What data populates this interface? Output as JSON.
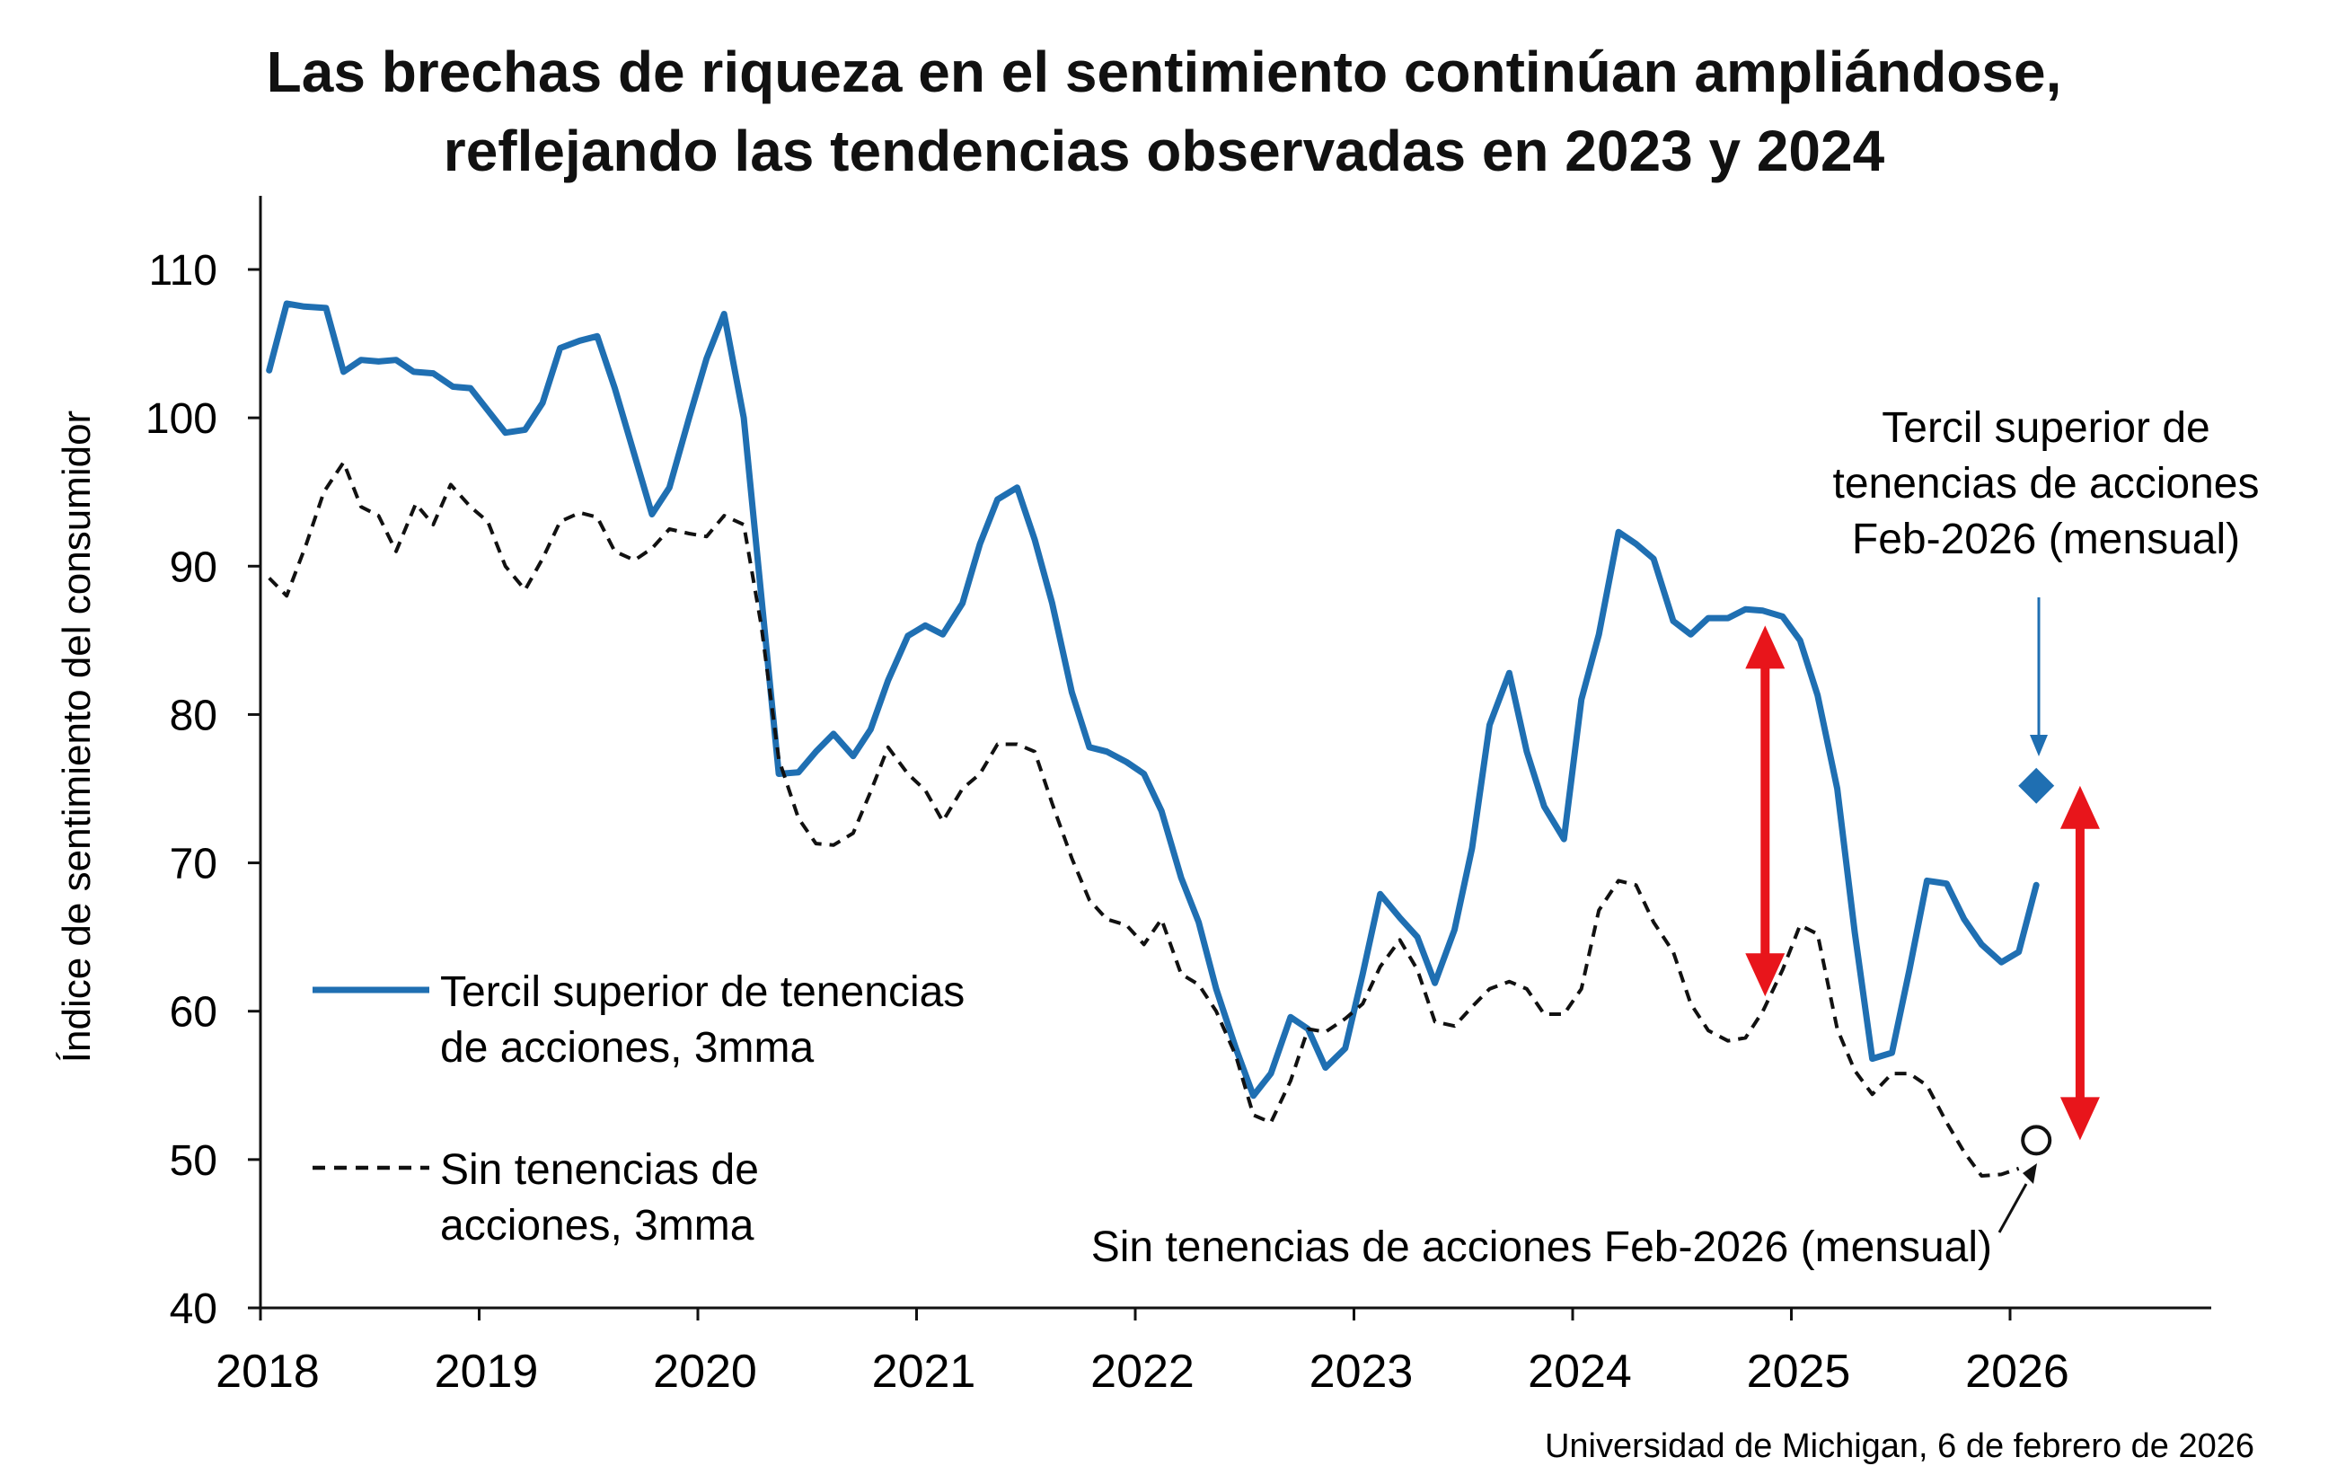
{
  "chart_data": {
    "type": "line",
    "title_line1": "Las brechas de riqueza en el sentimiento continúan ampliándose,",
    "title_line2": "reflejando las tendencias observadas en 2023 y 2024",
    "ylabel": "Índice de sentimiento del consumidor",
    "xlabel": "",
    "ylim": [
      40,
      115
    ],
    "yticks": [
      "40",
      "50",
      "60",
      "70",
      "80",
      "90",
      "100",
      "110"
    ],
    "xlim": [
      2018,
      2026.9
    ],
    "xticks": [
      "2018",
      "2019",
      "2020",
      "2021",
      "2022",
      "2023",
      "2024",
      "2025",
      "2026"
    ],
    "series": [
      {
        "name": "Tercil superior de tenencias de acciones, 3mma",
        "legend_line1": "Tercil superior de tenencias",
        "legend_line2": "de acciones, 3mma",
        "color": "#1f6fb2",
        "style": "solid",
        "points": [
          [
            2018.04,
            103.2
          ],
          [
            2018.12,
            107.7
          ],
          [
            2018.2,
            107.5
          ],
          [
            2018.3,
            107.4
          ],
          [
            2018.38,
            103.1
          ],
          [
            2018.46,
            103.9
          ],
          [
            2018.54,
            103.8
          ],
          [
            2018.62,
            103.9
          ],
          [
            2018.7,
            103.1
          ],
          [
            2018.79,
            103.0
          ],
          [
            2018.88,
            102.1
          ],
          [
            2018.96,
            102.0
          ],
          [
            2019.04,
            100.5
          ],
          [
            2019.12,
            99.0
          ],
          [
            2019.21,
            99.2
          ],
          [
            2019.29,
            101.0
          ],
          [
            2019.37,
            104.7
          ],
          [
            2019.46,
            105.2
          ],
          [
            2019.54,
            105.5
          ],
          [
            2019.62,
            102.0
          ],
          [
            2019.71,
            97.5
          ],
          [
            2019.79,
            93.5
          ],
          [
            2019.87,
            95.3
          ],
          [
            2019.96,
            100.0
          ],
          [
            2020.04,
            104.0
          ],
          [
            2020.12,
            107.0
          ],
          [
            2020.21,
            100.0
          ],
          [
            2020.29,
            88.0
          ],
          [
            2020.37,
            76.0
          ],
          [
            2020.46,
            76.1
          ],
          [
            2020.54,
            77.5
          ],
          [
            2020.62,
            78.7
          ],
          [
            2020.71,
            77.2
          ],
          [
            2020.79,
            79.0
          ],
          [
            2020.87,
            82.3
          ],
          [
            2020.96,
            85.3
          ],
          [
            2021.04,
            86.0
          ],
          [
            2021.12,
            85.4
          ],
          [
            2021.21,
            87.5
          ],
          [
            2021.29,
            91.5
          ],
          [
            2021.37,
            94.5
          ],
          [
            2021.46,
            95.3
          ],
          [
            2021.54,
            91.8
          ],
          [
            2021.62,
            87.5
          ],
          [
            2021.71,
            81.5
          ],
          [
            2021.79,
            77.8
          ],
          [
            2021.87,
            77.5
          ],
          [
            2021.96,
            76.8
          ],
          [
            2022.04,
            76.0
          ],
          [
            2022.12,
            73.5
          ],
          [
            2022.21,
            69.0
          ],
          [
            2022.29,
            66.0
          ],
          [
            2022.37,
            61.5
          ],
          [
            2022.46,
            57.5
          ],
          [
            2022.54,
            54.3
          ],
          [
            2022.62,
            55.8
          ],
          [
            2022.71,
            59.6
          ],
          [
            2022.79,
            58.8
          ],
          [
            2022.87,
            56.2
          ],
          [
            2022.96,
            57.5
          ],
          [
            2023.04,
            62.5
          ],
          [
            2023.12,
            67.9
          ],
          [
            2023.21,
            66.3
          ],
          [
            2023.29,
            65.0
          ],
          [
            2023.37,
            61.9
          ],
          [
            2023.46,
            65.5
          ],
          [
            2023.54,
            71.0
          ],
          [
            2023.62,
            79.3
          ],
          [
            2023.71,
            82.8
          ],
          [
            2023.79,
            77.5
          ],
          [
            2023.87,
            73.8
          ],
          [
            2023.96,
            71.6
          ],
          [
            2024.04,
            81.0
          ],
          [
            2024.12,
            85.4
          ],
          [
            2024.21,
            92.3
          ],
          [
            2024.29,
            91.5
          ],
          [
            2024.37,
            90.5
          ],
          [
            2024.46,
            86.3
          ],
          [
            2024.54,
            85.4
          ],
          [
            2024.62,
            86.5
          ],
          [
            2024.71,
            86.5
          ],
          [
            2024.79,
            87.1
          ],
          [
            2024.87,
            87.0
          ],
          [
            2024.96,
            86.6
          ],
          [
            2025.04,
            85.0
          ],
          [
            2025.12,
            81.3
          ],
          [
            2025.21,
            75.0
          ],
          [
            2025.29,
            65.3
          ],
          [
            2025.37,
            56.8
          ],
          [
            2025.46,
            57.2
          ],
          [
            2025.54,
            62.8
          ],
          [
            2025.62,
            68.8
          ],
          [
            2025.71,
            68.6
          ],
          [
            2025.79,
            66.2
          ],
          [
            2025.87,
            64.5
          ],
          [
            2025.96,
            63.3
          ],
          [
            2026.04,
            64.0
          ],
          [
            2026.12,
            68.5
          ]
        ]
      },
      {
        "name": "Sin tenencias de acciones, 3mma",
        "legend_line1": "Sin tenencias de",
        "legend_line2": "acciones, 3mma",
        "color": "#111111",
        "style": "dashed",
        "points": [
          [
            2018.04,
            89.2
          ],
          [
            2018.12,
            88.0
          ],
          [
            2018.21,
            91.5
          ],
          [
            2018.29,
            95.0
          ],
          [
            2018.38,
            97.0
          ],
          [
            2018.46,
            94.0
          ],
          [
            2018.54,
            93.4
          ],
          [
            2018.62,
            91.0
          ],
          [
            2018.71,
            94.2
          ],
          [
            2018.79,
            92.8
          ],
          [
            2018.87,
            95.5
          ],
          [
            2018.96,
            94.0
          ],
          [
            2019.04,
            93.0
          ],
          [
            2019.12,
            90.0
          ],
          [
            2019.21,
            88.4
          ],
          [
            2019.29,
            90.5
          ],
          [
            2019.37,
            93.0
          ],
          [
            2019.46,
            93.6
          ],
          [
            2019.54,
            93.3
          ],
          [
            2019.62,
            91.0
          ],
          [
            2019.71,
            90.4
          ],
          [
            2019.79,
            91.2
          ],
          [
            2019.87,
            92.5
          ],
          [
            2019.96,
            92.2
          ],
          [
            2020.04,
            92.0
          ],
          [
            2020.12,
            93.4
          ],
          [
            2020.21,
            92.8
          ],
          [
            2020.29,
            86.0
          ],
          [
            2020.37,
            77.0
          ],
          [
            2020.46,
            73.0
          ],
          [
            2020.54,
            71.3
          ],
          [
            2020.62,
            71.2
          ],
          [
            2020.71,
            72.0
          ],
          [
            2020.79,
            74.8
          ],
          [
            2020.87,
            77.8
          ],
          [
            2020.96,
            76.0
          ],
          [
            2021.04,
            74.9
          ],
          [
            2021.12,
            72.8
          ],
          [
            2021.21,
            75.0
          ],
          [
            2021.29,
            76.0
          ],
          [
            2021.37,
            78.0
          ],
          [
            2021.46,
            78.0
          ],
          [
            2021.54,
            77.5
          ],
          [
            2021.62,
            74.0
          ],
          [
            2021.71,
            70.3
          ],
          [
            2021.79,
            67.5
          ],
          [
            2021.87,
            66.2
          ],
          [
            2021.96,
            65.8
          ],
          [
            2022.04,
            64.5
          ],
          [
            2022.12,
            66.2
          ],
          [
            2022.21,
            62.5
          ],
          [
            2022.29,
            61.8
          ],
          [
            2022.37,
            60.0
          ],
          [
            2022.46,
            57.0
          ],
          [
            2022.54,
            53.0
          ],
          [
            2022.62,
            52.5
          ],
          [
            2022.71,
            55.3
          ],
          [
            2022.79,
            58.8
          ],
          [
            2022.87,
            58.6
          ],
          [
            2022.96,
            59.5
          ],
          [
            2023.04,
            60.5
          ],
          [
            2023.12,
            63.0
          ],
          [
            2023.21,
            64.8
          ],
          [
            2023.29,
            62.8
          ],
          [
            2023.37,
            59.3
          ],
          [
            2023.46,
            59.0
          ],
          [
            2023.54,
            60.3
          ],
          [
            2023.62,
            61.5
          ],
          [
            2023.71,
            62.0
          ],
          [
            2023.79,
            61.5
          ],
          [
            2023.87,
            59.8
          ],
          [
            2023.96,
            59.8
          ],
          [
            2024.04,
            61.5
          ],
          [
            2024.12,
            66.8
          ],
          [
            2024.21,
            68.8
          ],
          [
            2024.29,
            68.5
          ],
          [
            2024.37,
            66.0
          ],
          [
            2024.46,
            64.0
          ],
          [
            2024.54,
            60.5
          ],
          [
            2024.62,
            58.7
          ],
          [
            2024.71,
            58.0
          ],
          [
            2024.79,
            58.2
          ],
          [
            2024.87,
            60.0
          ],
          [
            2024.96,
            62.8
          ],
          [
            2025.04,
            65.8
          ],
          [
            2025.12,
            65.2
          ],
          [
            2025.21,
            58.8
          ],
          [
            2025.29,
            56.0
          ],
          [
            2025.37,
            54.4
          ],
          [
            2025.46,
            55.8
          ],
          [
            2025.54,
            55.8
          ],
          [
            2025.62,
            55.0
          ],
          [
            2025.71,
            52.5
          ],
          [
            2025.79,
            50.5
          ],
          [
            2025.87,
            48.9
          ],
          [
            2025.96,
            49.0
          ],
          [
            2026.04,
            49.4
          ]
        ]
      }
    ],
    "markers": [
      {
        "name": "Tercil superior de tenencias de acciones Feb-2026 (mensual)",
        "shape": "diamond",
        "x": 2026.12,
        "y": 75.2,
        "color": "#1f6fb2"
      },
      {
        "name": "Sin tenencias de acciones Feb-2026 (mensual)",
        "shape": "open-circle",
        "x": 2026.12,
        "y": 51.3,
        "color": "#111111"
      }
    ],
    "gap_arrows": [
      {
        "x": 2024.88,
        "y_top": 86.0,
        "y_bottom": 61.0,
        "color": "#e8151b"
      },
      {
        "x": 2026.32,
        "y_top": 75.2,
        "y_bottom": 51.3,
        "color": "#e8151b"
      }
    ],
    "annotations": {
      "top_marker_line1": "Tercil superior de",
      "top_marker_line2": "tenencias de acciones",
      "top_marker_line3": "Feb-2026 (mensual)",
      "bottom_marker": "Sin tenencias de acciones Feb-2026 (mensual)"
    },
    "source": "Universidad de Michigan, 6 de febrero de 2026",
    "legend_position": "bottom-left"
  }
}
